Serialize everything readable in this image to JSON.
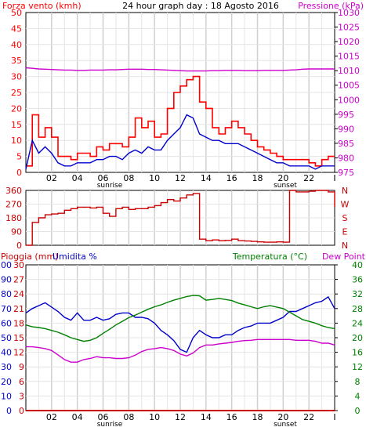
{
  "header": {
    "title": "24 hour graph day : 18 Agosto 2016",
    "left_label": "Forza vento (kmh)",
    "right_label": "Pressione (kPa)"
  },
  "x_axis": {
    "hour_labels": [
      "02",
      "04",
      "06",
      "08",
      "10",
      "12",
      "14",
      "16",
      "18",
      "20",
      "22",
      "I"
    ],
    "sunrise_label": "sunrise",
    "sunset_label": "sunset"
  },
  "panel2": {
    "left_ticks": [
      "360",
      "270",
      "180",
      "90",
      "0"
    ],
    "right_letters": [
      "N",
      "W",
      "S",
      "E",
      "N"
    ]
  },
  "panel3": {
    "label_rain": "Pioggia (mm)",
    "label_hum": "Umidita %",
    "label_temp": "Temperatura (°C)",
    "label_dew": "Dew Point"
  },
  "colors": {
    "wind_gust": "#ff0000",
    "wind_avg": "#0000cc",
    "pressure": "#cc00cc",
    "direction": "#cc0000",
    "temperature": "#008000",
    "dewpoint": "#cc00cc",
    "humidity": "#0000cc",
    "rain": "#cc0000",
    "grid": "#d8d8d8"
  },
  "chart_data": [
    {
      "type": "line",
      "title": "24 hour graph day : 18 Agosto 2016",
      "ylabel": "Forza vento (kmh)",
      "ylim": [
        0,
        50
      ],
      "y2label": "Pressione (kPa)",
      "y2lim": [
        975,
        1030
      ],
      "y_ticks": [
        "0",
        "5",
        "10",
        "15",
        "20",
        "25",
        "30",
        "35",
        "40",
        "45",
        "50"
      ],
      "y2_ticks": [
        "975",
        "980",
        "985",
        "990",
        "995",
        "1000",
        "1005",
        "1010",
        "1015",
        "1020",
        "1025",
        "1030"
      ],
      "grid": true,
      "x_hours": [
        0.0,
        0.5,
        1.0,
        1.5,
        2.0,
        2.5,
        3.0,
        3.5,
        4.0,
        4.5,
        5.0,
        5.5,
        6.0,
        6.5,
        7.0,
        7.5,
        8.0,
        8.5,
        9.0,
        9.5,
        10.0,
        10.5,
        11.0,
        11.5,
        12.0,
        12.5,
        13.0,
        13.5,
        14.0,
        14.5,
        15.0,
        15.5,
        16.0,
        16.5,
        17.0,
        17.5,
        18.0,
        18.5,
        19.0,
        19.5,
        20.0,
        20.5,
        21.0,
        21.5,
        22.0,
        22.5,
        23.0,
        23.5,
        24.0
      ],
      "series": [
        {
          "name": "Forza vento (kmh)",
          "axis": "left",
          "color": "#ff0000",
          "values": [
            2,
            18,
            11,
            14,
            11,
            5,
            5,
            4,
            6,
            6,
            5,
            8,
            7,
            9,
            9,
            8,
            11,
            17,
            14,
            16,
            11,
            12,
            20,
            25,
            27,
            29,
            30,
            22,
            20,
            14,
            12,
            14,
            16,
            14,
            12,
            10,
            8,
            7,
            6,
            5,
            4,
            4,
            4,
            4,
            3,
            2,
            4,
            5,
            5
          ]
        },
        {
          "name": "",
          "axis": "left",
          "color": "#0000cc",
          "values": [
            1,
            10,
            6,
            8,
            6,
            3,
            2,
            2,
            3,
            3,
            3,
            4,
            4,
            5,
            5,
            4,
            6,
            7,
            6,
            8,
            7,
            7,
            10,
            12,
            14,
            18,
            17,
            12,
            11,
            10,
            10,
            9,
            9,
            9,
            8,
            7,
            6,
            5,
            4,
            3,
            3,
            2,
            2,
            2,
            2,
            1,
            2,
            2,
            2
          ]
        },
        {
          "name": "Pressione (kPa)",
          "axis": "right",
          "color": "#cc00cc",
          "values": [
            1011.0,
            1010.8,
            1010.6,
            1010.5,
            1010.4,
            1010.3,
            1010.2,
            1010.2,
            1010.1,
            1010.1,
            1010.2,
            1010.2,
            1010.2,
            1010.3,
            1010.3,
            1010.4,
            1010.5,
            1010.5,
            1010.5,
            1010.4,
            1010.4,
            1010.3,
            1010.2,
            1010.1,
            1010.0,
            1009.9,
            1009.9,
            1009.9,
            1009.9,
            1010.0,
            1010.0,
            1010.1,
            1010.1,
            1010.1,
            1010.0,
            1010.0,
            1010.0,
            1010.1,
            1010.1,
            1010.1,
            1010.1,
            1010.2,
            1010.3,
            1010.5,
            1010.6,
            1010.6,
            1010.6,
            1010.6,
            1010.6
          ]
        }
      ]
    },
    {
      "type": "line",
      "ylim": [
        0,
        360
      ],
      "y_ticks": [
        "0",
        "90",
        "180",
        "270",
        "360"
      ],
      "x_hours": [
        0.0,
        0.5,
        1.0,
        1.5,
        2.0,
        2.5,
        3.0,
        3.5,
        4.0,
        4.5,
        5.0,
        5.5,
        6.0,
        6.5,
        7.0,
        7.5,
        8.0,
        8.5,
        9.0,
        9.5,
        10.0,
        10.5,
        11.0,
        11.5,
        12.0,
        12.5,
        13.0,
        13.5,
        14.0,
        14.5,
        15.0,
        15.5,
        16.0,
        16.5,
        17.0,
        17.5,
        18.0,
        18.5,
        19.0,
        19.5,
        20.0,
        20.5,
        21.0,
        21.5,
        22.0,
        22.5,
        23.0,
        23.5,
        24.0
      ],
      "series": [
        {
          "name": "",
          "color": "#cc0000",
          "values": [
            0,
            150,
            180,
            200,
            205,
            210,
            230,
            240,
            250,
            250,
            245,
            250,
            210,
            190,
            240,
            250,
            235,
            240,
            240,
            250,
            260,
            280,
            300,
            290,
            310,
            330,
            340,
            40,
            30,
            35,
            30,
            32,
            40,
            30,
            28,
            25,
            22,
            20,
            20,
            22,
            20,
            360,
            350,
            350,
            355,
            360,
            360,
            350,
            250
          ]
        }
      ]
    },
    {
      "type": "line",
      "ylabel": "Pioggia (mm)",
      "ylim": [
        0,
        100
      ],
      "y2lim": [
        0,
        40
      ],
      "y_ticks": [
        "0",
        "10",
        "20",
        "30",
        "40",
        "50",
        "60",
        "70",
        "80",
        "90",
        "100"
      ],
      "y_ticks_inner": [
        "0",
        "3",
        "6",
        "9",
        "12",
        "15",
        "18",
        "21",
        "24",
        "27",
        "30"
      ],
      "y2_ticks": [
        "0",
        "4",
        "8",
        "12",
        "16",
        "20",
        "24",
        "28",
        "32",
        "36",
        "40"
      ],
      "x_hours": [
        0.0,
        0.5,
        1.0,
        1.5,
        2.0,
        2.5,
        3.0,
        3.5,
        4.0,
        4.5,
        5.0,
        5.5,
        6.0,
        6.5,
        7.0,
        7.5,
        8.0,
        8.5,
        9.0,
        9.5,
        10.0,
        10.5,
        11.0,
        11.5,
        12.0,
        12.5,
        13.0,
        13.5,
        14.0,
        14.5,
        15.0,
        15.5,
        16.0,
        16.5,
        17.0,
        17.5,
        18.0,
        18.5,
        19.0,
        19.5,
        20.0,
        20.5,
        21.0,
        21.5,
        22.0,
        22.5,
        23.0,
        23.5,
        24.0
      ],
      "series": [
        {
          "name": "Umidita %",
          "axis": "left",
          "color": "#0000cc",
          "values": [
            67,
            70,
            72,
            74,
            71,
            68,
            64,
            62,
            67,
            62,
            62,
            64,
            62,
            63,
            66,
            67,
            67,
            64,
            64,
            63,
            60,
            55,
            52,
            48,
            42,
            40,
            50,
            55,
            52,
            50,
            50,
            52,
            52,
            55,
            57,
            58,
            60,
            60,
            60,
            62,
            64,
            68,
            68,
            70,
            72,
            74,
            75,
            78,
            70
          ]
        },
        {
          "name": "Temperatura (°C)",
          "axis": "right",
          "color": "#008000",
          "values": [
            23.5,
            23.0,
            22.8,
            22.5,
            22.0,
            21.5,
            20.8,
            20.0,
            19.5,
            19.0,
            19.3,
            20.0,
            21.2,
            22.3,
            23.5,
            24.5,
            25.5,
            26.2,
            27.0,
            27.8,
            28.5,
            29.0,
            29.7,
            30.3,
            30.8,
            31.3,
            31.6,
            31.5,
            30.3,
            30.5,
            30.8,
            30.5,
            30.2,
            29.5,
            29.0,
            28.5,
            28.0,
            28.5,
            28.8,
            28.4,
            28.0,
            27.0,
            26.0,
            25.0,
            24.5,
            24.0,
            23.3,
            22.8,
            22.5
          ]
        },
        {
          "name": "Dew Point",
          "axis": "right",
          "color": "#cc00cc",
          "values": [
            17.5,
            17.5,
            17.3,
            17.0,
            16.5,
            15.3,
            14.0,
            13.3,
            13.3,
            14.0,
            14.3,
            14.8,
            14.5,
            14.5,
            14.3,
            14.3,
            14.5,
            15.2,
            16.2,
            16.8,
            17.0,
            17.3,
            17.0,
            16.5,
            15.5,
            15.0,
            15.8,
            17.3,
            18.0,
            18.0,
            18.3,
            18.5,
            18.7,
            19.0,
            19.2,
            19.3,
            19.5,
            19.5,
            19.5,
            19.5,
            19.5,
            19.5,
            19.3,
            19.3,
            19.3,
            19.0,
            18.5,
            18.5,
            18.0
          ]
        },
        {
          "name": "Pioggia (mm)",
          "axis": "left",
          "color": "#cc0000",
          "values": [
            0,
            0,
            0,
            0,
            0,
            0,
            0,
            0,
            0,
            0,
            0,
            0,
            0,
            0,
            0,
            0,
            0,
            0,
            0,
            0,
            0,
            0,
            0,
            0,
            0,
            0,
            0,
            0,
            0,
            0,
            0,
            0,
            0,
            0,
            0,
            0,
            0,
            0,
            0,
            0,
            0,
            0,
            0,
            0,
            0,
            0,
            0,
            0,
            0
          ]
        }
      ]
    }
  ]
}
